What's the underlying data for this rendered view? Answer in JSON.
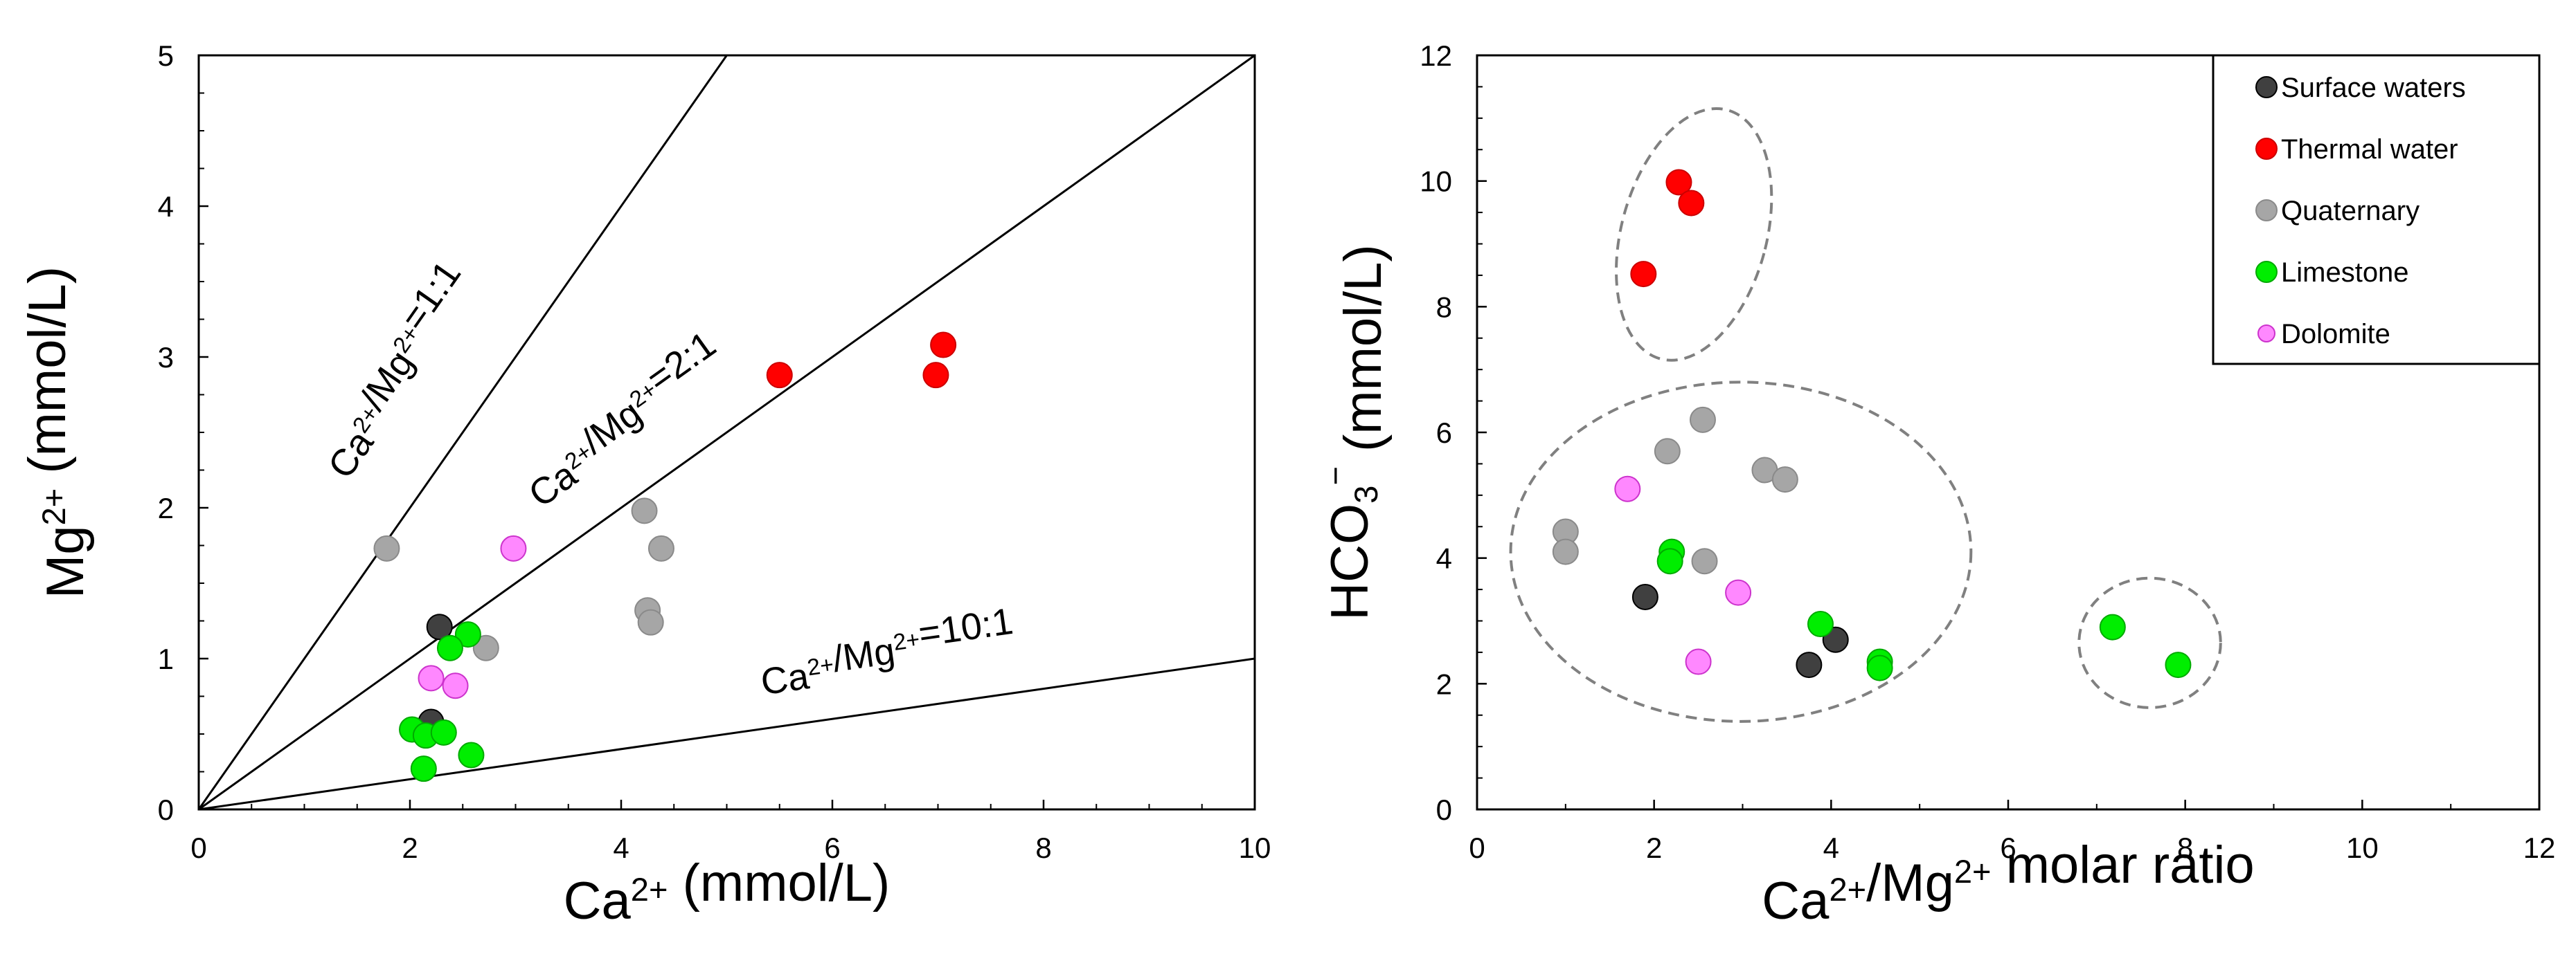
{
  "chart_data": [
    {
      "type": "scatter",
      "xlabel": {
        "base": "Ca",
        "sup": "2+",
        "tail": " (mmol/L)"
      },
      "ylabel": {
        "base": "Mg",
        "sup": "2+",
        "tail": " (mmol/L)"
      },
      "xlim": [
        0,
        10
      ],
      "ylim": [
        0,
        5
      ],
      "xticks": [
        "0",
        "2",
        "4",
        "6",
        "8",
        "10"
      ],
      "yticks": [
        "0",
        "1",
        "2",
        "3",
        "4",
        "5"
      ],
      "reference_lines": [
        {
          "slope": 1,
          "label": "Ca2+/Mg2+=1:1",
          "text": [
            {
              "t": "Ca"
            },
            {
              "t": "2+",
              "sup": true
            },
            {
              "t": "/Mg"
            },
            {
              "t": "2+",
              "sup": true
            },
            {
              "t": "=1:1"
            }
          ]
        },
        {
          "slope": 0.5,
          "label": "Ca2+/Mg2+=2:1",
          "text": [
            {
              "t": "Ca"
            },
            {
              "t": "2+",
              "sup": true
            },
            {
              "t": "/Mg"
            },
            {
              "t": "2+",
              "sup": true
            },
            {
              "t": "=2:1"
            }
          ]
        },
        {
          "slope": 0.1,
          "label": "Ca2+/Mg2+=10:1",
          "text": [
            {
              "t": "Ca"
            },
            {
              "t": "2+",
              "sup": true
            },
            {
              "t": "/Mg"
            },
            {
              "t": "2+",
              "sup": true
            },
            {
              "t": "=10:1"
            }
          ]
        }
      ],
      "series": [
        {
          "name": "Surface waters",
          "points": [
            [
              2.28,
              1.21
            ],
            [
              2.2,
              0.58
            ]
          ]
        },
        {
          "name": "Thermal water",
          "points": [
            [
              5.5,
              2.88
            ],
            [
              7.05,
              3.08
            ],
            [
              6.98,
              2.88
            ]
          ]
        },
        {
          "name": "Quaternary",
          "points": [
            [
              1.78,
              1.73
            ],
            [
              4.22,
              1.98
            ],
            [
              4.38,
              1.73
            ],
            [
              4.25,
              1.32
            ],
            [
              4.28,
              1.24
            ],
            [
              2.72,
              1.07
            ]
          ]
        },
        {
          "name": "Limestone",
          "points": [
            [
              2.55,
              1.16
            ],
            [
              2.38,
              1.07
            ],
            [
              2.02,
              0.53
            ],
            [
              2.15,
              0.49
            ],
            [
              2.32,
              0.51
            ],
            [
              2.58,
              0.36
            ],
            [
              2.13,
              0.27
            ]
          ]
        },
        {
          "name": "Dolomite",
          "points": [
            [
              2.98,
              1.73
            ],
            [
              2.2,
              0.87
            ],
            [
              2.43,
              0.82
            ]
          ]
        }
      ]
    },
    {
      "type": "scatter",
      "xlabel": {
        "base": "Ca",
        "sup": "2+",
        "mid": "/Mg",
        "sup2": "2+",
        "tail": " molar ratio"
      },
      "ylabel": {
        "base": "HCO",
        "sub": "3",
        "sup": "−",
        "tail": " (mmol/L)"
      },
      "xlim": [
        0,
        12
      ],
      "ylim": [
        0,
        12
      ],
      "xticks": [
        "0",
        "2",
        "4",
        "6",
        "8",
        "10",
        "12"
      ],
      "yticks": [
        "0",
        "2",
        "4",
        "6",
        "8",
        "10",
        "12"
      ],
      "legend_position": "top-right",
      "groups": [
        "thermal-cluster",
        "main-cluster",
        "limestone-outliers"
      ],
      "series": [
        {
          "name": "Surface waters",
          "points": [
            [
              1.9,
              3.38
            ],
            [
              3.75,
              2.3
            ],
            [
              4.05,
              2.7
            ]
          ]
        },
        {
          "name": "Thermal water",
          "points": [
            [
              2.28,
              9.98
            ],
            [
              2.42,
              9.65
            ],
            [
              1.88,
              8.52
            ]
          ]
        },
        {
          "name": "Quaternary",
          "points": [
            [
              1.0,
              4.42
            ],
            [
              1.0,
              4.1
            ],
            [
              2.15,
              5.7
            ],
            [
              2.55,
              6.2
            ],
            [
              3.25,
              5.4
            ],
            [
              3.48,
              5.25
            ],
            [
              2.57,
              3.95
            ]
          ]
        },
        {
          "name": "Limestone",
          "points": [
            [
              2.2,
              4.1
            ],
            [
              2.18,
              3.95
            ],
            [
              3.88,
              2.95
            ],
            [
              4.55,
              2.35
            ],
            [
              4.55,
              2.25
            ],
            [
              7.18,
              2.9
            ],
            [
              7.92,
              2.3
            ]
          ]
        },
        {
          "name": "Dolomite",
          "points": [
            [
              1.7,
              5.1
            ],
            [
              2.95,
              3.45
            ],
            [
              2.5,
              2.35
            ]
          ]
        }
      ]
    }
  ],
  "legend": [
    {
      "label": "Surface waters",
      "color": "#404040"
    },
    {
      "label": "Thermal water",
      "color": "#ff0000"
    },
    {
      "label": "Quaternary",
      "color": "#a6a6a6"
    },
    {
      "label": "Limestone",
      "color": "#00ee00"
    },
    {
      "label": "Dolomite",
      "color": "#ff88ff"
    }
  ]
}
